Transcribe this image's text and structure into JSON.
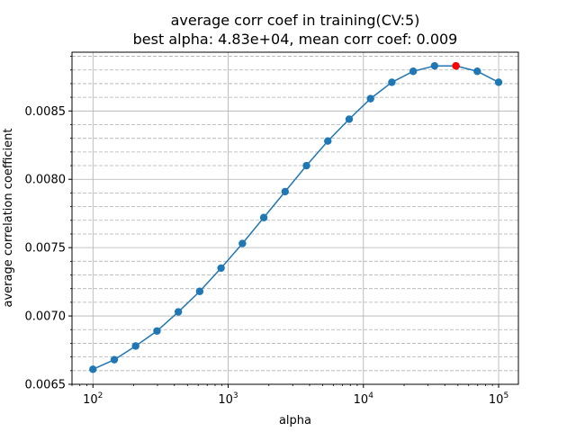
{
  "chart_data": {
    "type": "line",
    "title": "average corr coef in training(CV:5)",
    "subtitle": "best alpha: 4.83e+04, mean corr coef: 0.009",
    "xlabel": "alpha",
    "ylabel": "average correlation coefficient",
    "xscale": "log",
    "xlim": [
      70,
      140000
    ],
    "ylim": [
      0.0065,
      0.00893
    ],
    "grid": true,
    "x_ticks": [
      100,
      1000,
      10000,
      100000
    ],
    "x_tick_labels": [
      {
        "base": "10",
        "exp": "2"
      },
      {
        "base": "10",
        "exp": "3"
      },
      {
        "base": "10",
        "exp": "4"
      },
      {
        "base": "10",
        "exp": "5"
      }
    ],
    "y_ticks": [
      0.0065,
      0.007,
      0.0075,
      0.008,
      0.0085
    ],
    "y_tick_labels": [
      "0.0065",
      "0.0070",
      "0.0075",
      "0.0080",
      "0.0085"
    ],
    "series": [
      {
        "color": "#1f77b4",
        "marker": "circle",
        "x": [
          100,
          143.8,
          206.9,
          297.6,
          428.1,
          615.8,
          885.9,
          1274.3,
          1833.0,
          2636.7,
          3792.7,
          5455.6,
          7847.6,
          11288.4,
          16237.8,
          23357.2,
          33598.2,
          48329.3,
          69519.3,
          100000
        ],
        "y": [
          0.00661,
          0.00668,
          0.00678,
          0.00689,
          0.00703,
          0.00718,
          0.00735,
          0.00753,
          0.00772,
          0.00791,
          0.0081,
          0.00828,
          0.00844,
          0.00859,
          0.00871,
          0.00879,
          0.00883,
          0.00883,
          0.00879,
          0.00871
        ]
      }
    ],
    "best_point": {
      "x": 48329.3,
      "y": 0.00883,
      "color": "#ff0000"
    }
  }
}
